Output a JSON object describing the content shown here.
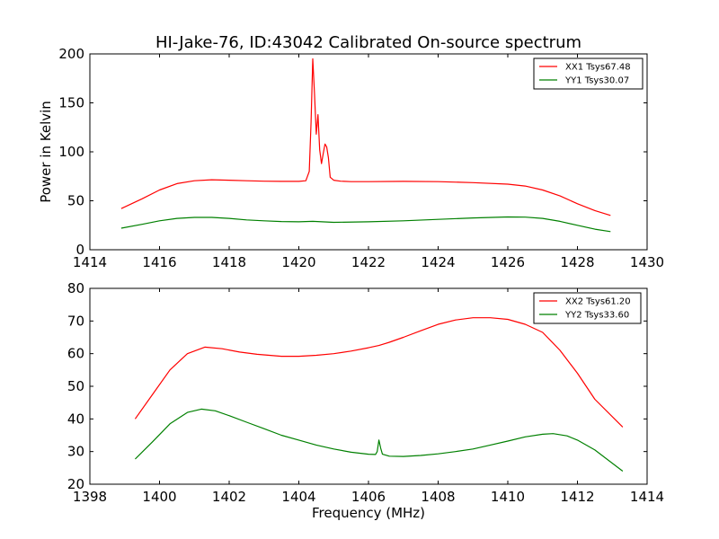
{
  "colors": {
    "xx": "#ff0000",
    "yy": "#008000",
    "axes": "#000000",
    "background": "#ffffff"
  },
  "chart_data": [
    {
      "type": "line",
      "title": "HI-Jake-76, ID:43042 Calibrated On-source spectrum",
      "xlabel": "",
      "ylabel": "Power in Kelvin",
      "xlim": [
        1414,
        1430
      ],
      "ylim": [
        0,
        200
      ],
      "xticks": [
        "1414",
        "1416",
        "1418",
        "1420",
        "1422",
        "1424",
        "1426",
        "1428",
        "1430"
      ],
      "yticks": [
        "0",
        "50",
        "100",
        "150",
        "200"
      ],
      "grid": false,
      "legend_position": "top-right",
      "series": [
        {
          "name": "XX1 Tsys67.48",
          "color": "#ff0000",
          "x": [
            1414.9,
            1415.5,
            1416.0,
            1416.5,
            1417.0,
            1417.5,
            1418.0,
            1418.5,
            1419.0,
            1419.5,
            1420.0,
            1420.2,
            1420.3,
            1420.35,
            1420.4,
            1420.45,
            1420.5,
            1420.55,
            1420.6,
            1420.65,
            1420.7,
            1420.75,
            1420.8,
            1420.85,
            1420.9,
            1421.0,
            1421.2,
            1421.5,
            1422.0,
            1423.0,
            1424.0,
            1425.0,
            1426.0,
            1426.5,
            1427.0,
            1427.5,
            1428.0,
            1428.5,
            1428.95
          ],
          "y": [
            42,
            52,
            61,
            67.5,
            70.5,
            71.5,
            71,
            70.5,
            70,
            69.8,
            69.8,
            70.5,
            80,
            130,
            195,
            160,
            118,
            138,
            102,
            88,
            98,
            108,
            105,
            94,
            74,
            71,
            70,
            69.5,
            69.5,
            69.8,
            69.5,
            68.5,
            67,
            65,
            61,
            55,
            47,
            40,
            35
          ]
        },
        {
          "name": "YY1 Tsys30.07",
          "color": "#008000",
          "x": [
            1414.9,
            1415.5,
            1416.0,
            1416.5,
            1417.0,
            1417.5,
            1418.0,
            1418.5,
            1419.0,
            1419.5,
            1420.0,
            1420.4,
            1421.0,
            1422.0,
            1423.0,
            1424.0,
            1425.0,
            1426.0,
            1426.5,
            1427.0,
            1427.5,
            1428.0,
            1428.5,
            1428.95
          ],
          "y": [
            22,
            26,
            29.5,
            32,
            33,
            33,
            32,
            30.5,
            29.5,
            28.8,
            28.5,
            29,
            28,
            28.5,
            29.5,
            31,
            32.5,
            33.5,
            33.3,
            32,
            29,
            25,
            21,
            18.5
          ]
        }
      ]
    },
    {
      "type": "line",
      "title": "",
      "xlabel": "Frequency (MHz)",
      "ylabel": "",
      "xlim": [
        1398,
        1414
      ],
      "ylim": [
        20,
        80
      ],
      "xticks": [
        "1398",
        "1400",
        "1402",
        "1404",
        "1406",
        "1408",
        "1410",
        "1412",
        "1414"
      ],
      "yticks": [
        "20",
        "30",
        "40",
        "50",
        "60",
        "70",
        "80"
      ],
      "grid": false,
      "legend_position": "top-right",
      "series": [
        {
          "name": "XX2 Tsys61.20",
          "color": "#ff0000",
          "x": [
            1399.3,
            1399.8,
            1400.3,
            1400.8,
            1401.3,
            1401.8,
            1402.3,
            1402.8,
            1403.5,
            1404.0,
            1404.5,
            1405.0,
            1405.5,
            1406.0,
            1406.3,
            1406.6,
            1407.0,
            1407.5,
            1408.0,
            1408.5,
            1409.0,
            1409.5,
            1410.0,
            1410.5,
            1411.0,
            1411.5,
            1412.0,
            1412.5,
            1413.3
          ],
          "y": [
            40,
            47.5,
            55,
            60,
            62,
            61.5,
            60.5,
            59.8,
            59.2,
            59.2,
            59.5,
            60,
            60.8,
            61.8,
            62.5,
            63.5,
            65,
            67,
            69,
            70.3,
            71,
            71,
            70.5,
            69,
            66.5,
            61,
            54,
            46,
            37.5
          ]
        },
        {
          "name": "YY2 Tsys33.60",
          "color": "#008000",
          "x": [
            1399.3,
            1399.8,
            1400.3,
            1400.8,
            1401.2,
            1401.6,
            1402.0,
            1402.5,
            1403.0,
            1403.5,
            1404.0,
            1404.5,
            1405.0,
            1405.5,
            1406.0,
            1406.2,
            1406.25,
            1406.3,
            1406.35,
            1406.4,
            1406.6,
            1407.0,
            1407.5,
            1408.0,
            1408.5,
            1409.0,
            1409.5,
            1410.0,
            1410.5,
            1411.0,
            1411.3,
            1411.7,
            1412.0,
            1412.5,
            1413.3
          ],
          "y": [
            27.7,
            33,
            38.5,
            42,
            43,
            42.5,
            41,
            39,
            37,
            35,
            33.5,
            32,
            30.8,
            29.8,
            29.2,
            29.1,
            30,
            33.5,
            31,
            29.2,
            28.6,
            28.5,
            28.8,
            29.3,
            30,
            30.8,
            32,
            33.2,
            34.5,
            35.3,
            35.5,
            34.8,
            33.5,
            30.5,
            24
          ]
        }
      ]
    }
  ]
}
